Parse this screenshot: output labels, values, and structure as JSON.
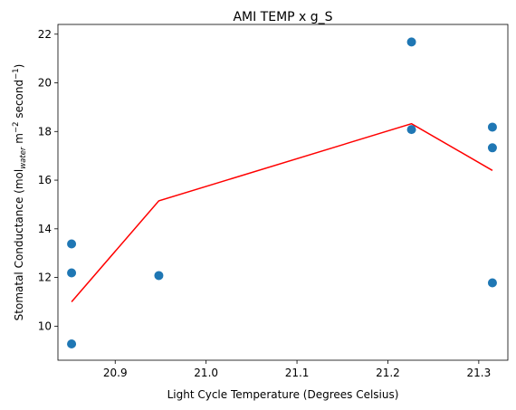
{
  "chart_data": {
    "type": "scatter",
    "title": "AMI TEMP x g_S",
    "xlabel": "Light Cycle Temperature (Degrees Celsius)",
    "ylabel": {
      "prefix": "Stomatal Conductance (mol",
      "sub": "water",
      "mid1": " m",
      "sup1": "−2",
      "mid2": " second",
      "sup2": "−1",
      "suffix": ")"
    },
    "xlim": [
      20.837,
      21.332
    ],
    "ylim": [
      8.6,
      22.4
    ],
    "x_ticks": [
      20.9,
      21.0,
      21.1,
      21.2,
      21.3
    ],
    "x_tick_labels": [
      "20.9",
      "21.0",
      "21.1",
      "21.2",
      "21.3"
    ],
    "y_ticks": [
      10,
      12,
      14,
      16,
      18,
      20,
      22
    ],
    "y_tick_labels": [
      "10",
      "12",
      "14",
      "16",
      "18",
      "20",
      "22"
    ],
    "grid": false,
    "series": [
      {
        "type": "scatter",
        "color": "#1f77b4",
        "points": [
          {
            "x": 20.852,
            "y": 13.38
          },
          {
            "x": 20.852,
            "y": 12.19
          },
          {
            "x": 20.852,
            "y": 9.27
          },
          {
            "x": 20.948,
            "y": 12.08
          },
          {
            "x": 21.226,
            "y": 21.68
          },
          {
            "x": 21.226,
            "y": 18.08
          },
          {
            "x": 21.315,
            "y": 18.18
          },
          {
            "x": 21.315,
            "y": 17.33
          },
          {
            "x": 21.315,
            "y": 11.78
          }
        ]
      },
      {
        "type": "line",
        "color": "#ff0000",
        "points": [
          {
            "x": 20.852,
            "y": 11.0
          },
          {
            "x": 20.948,
            "y": 15.15
          },
          {
            "x": 21.226,
            "y": 18.32
          },
          {
            "x": 21.315,
            "y": 16.4
          }
        ]
      }
    ]
  }
}
